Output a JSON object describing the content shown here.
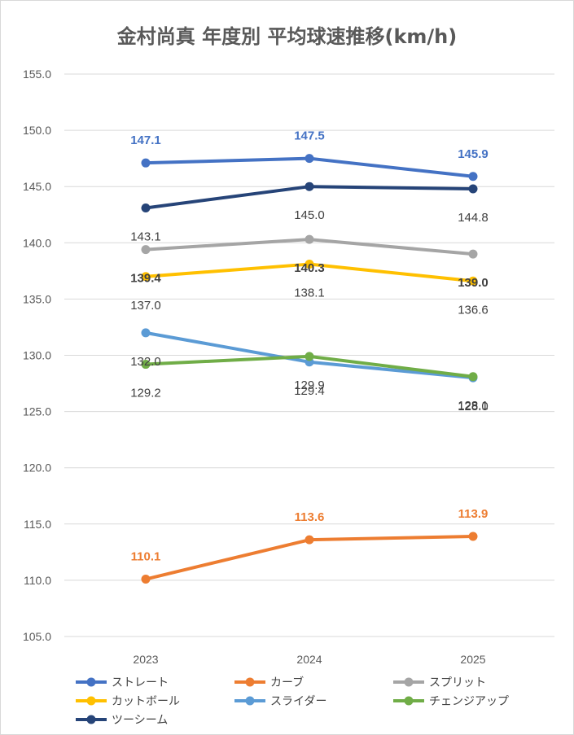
{
  "chart_data": {
    "type": "line",
    "title": "金村尚真 年度別 平均球速推移(km/h)",
    "x": [
      "2023",
      "2024",
      "2025"
    ],
    "ylim": [
      105,
      155
    ],
    "yticks": [
      "105.0",
      "110.0",
      "115.0",
      "120.0",
      "125.0",
      "130.0",
      "135.0",
      "140.0",
      "145.0",
      "150.0",
      "155.0"
    ],
    "grid": true,
    "legend_position": "bottom",
    "series": [
      {
        "name": "ストレート",
        "color": "#4472C4",
        "values": [
          147.1,
          147.5,
          145.9
        ],
        "labels": [
          "147.1",
          "147.5",
          "145.9"
        ],
        "label_pos": "above",
        "label_color": "#4472C4",
        "bold": true
      },
      {
        "name": "カーブ",
        "color": "#ED7D31",
        "values": [
          110.1,
          113.6,
          113.9
        ],
        "labels": [
          "110.1",
          "113.6",
          "113.9"
        ],
        "label_pos": "above",
        "label_color": "#ED7D31",
        "bold": true
      },
      {
        "name": "スプリット",
        "color": "#A5A5A5",
        "values": [
          139.4,
          140.3,
          139.0
        ],
        "labels": [
          "139.4",
          "140.3",
          "139.0"
        ],
        "label_pos": "below",
        "label_color": "#404040",
        "bold": true
      },
      {
        "name": "カットボール",
        "color": "#FFC000",
        "values": [
          137.0,
          138.1,
          136.6
        ],
        "labels": [
          "137.0",
          "138.1",
          "136.6"
        ],
        "label_pos": "below",
        "label_color": "#404040",
        "bold": false
      },
      {
        "name": "スライダー",
        "color": "#5B9BD5",
        "values": [
          132.0,
          129.4,
          128.0
        ],
        "labels": [
          "132.0",
          "129.4",
          "128.0"
        ],
        "label_pos": "below",
        "label_color": "#404040",
        "bold": false
      },
      {
        "name": "チェンジアップ",
        "color": "#70AD47",
        "values": [
          129.2,
          129.9,
          128.1
        ],
        "labels": [
          "129.2",
          "129.9",
          "128.1"
        ],
        "label_pos": "below",
        "label_color": "#404040",
        "bold": false
      },
      {
        "name": "ツーシーム",
        "color": "#264478",
        "values": [
          143.1,
          145.0,
          144.8
        ],
        "labels": [
          "143.1",
          "145.0",
          "144.8"
        ],
        "label_pos": "below",
        "label_color": "#404040",
        "bold": false
      }
    ]
  }
}
